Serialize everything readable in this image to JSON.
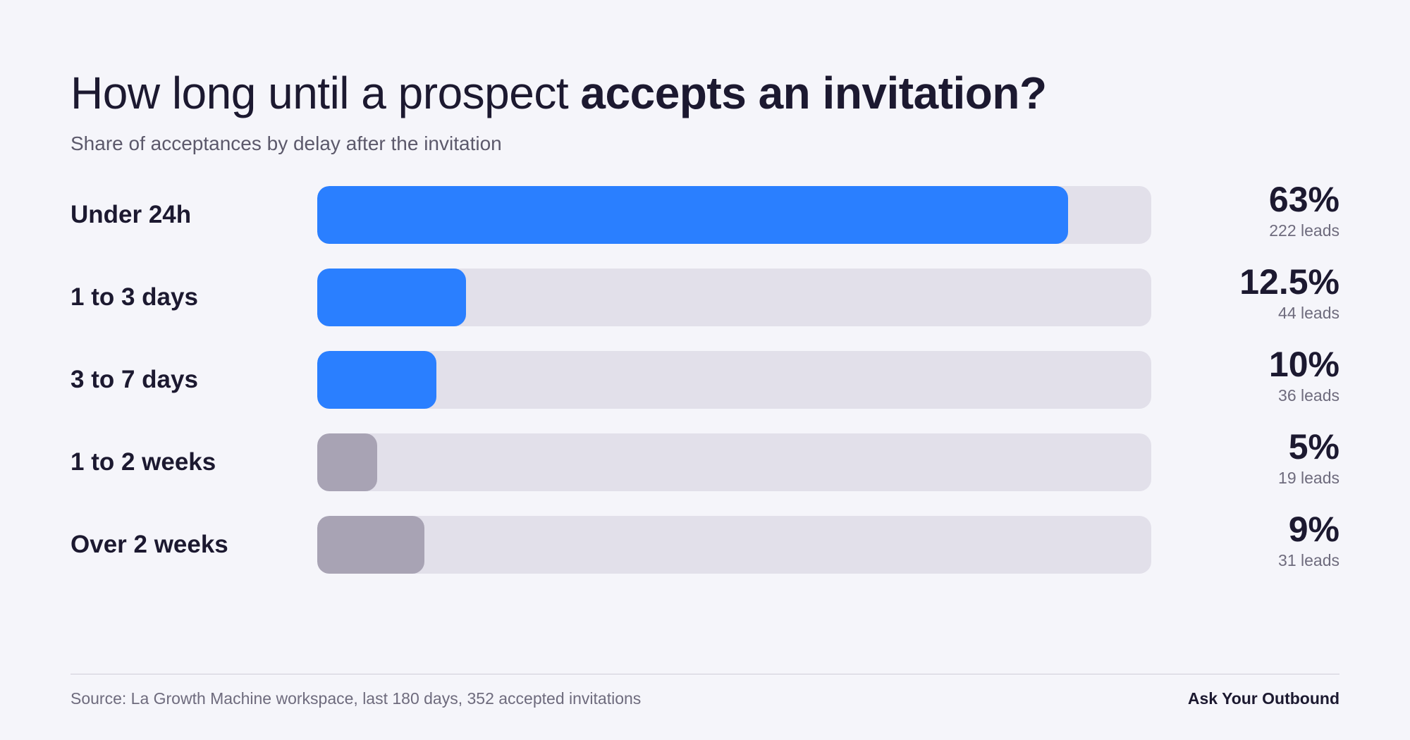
{
  "header": {
    "title_regular": "How long until a prospect",
    "title_bold": "accepts an invitation?",
    "subtitle": "Share of acceptances by delay after the invitation"
  },
  "chart_data": {
    "type": "bar",
    "orientation": "horizontal",
    "title": "How long until a prospect accepts an invitation?",
    "subtitle": "Share of acceptances by delay after the invitation",
    "categories": [
      "Under 24h",
      "1 to 3 days",
      "3 to 7 days",
      "1 to 2 weeks",
      "Over 2 weeks"
    ],
    "values": [
      63,
      12.5,
      10,
      5,
      9
    ],
    "value_labels": [
      "63%",
      "12.5%",
      "10%",
      "5%",
      "9%"
    ],
    "leads": [
      "222 leads",
      "44 leads",
      "36 leads",
      "19 leads",
      "31 leads"
    ],
    "xlim": [
      0,
      70
    ],
    "colors": [
      "#2a7fff",
      "#2a7fff",
      "#2a7fff",
      "#a8a3b4",
      "#a8a3b4"
    ],
    "track_color": "#e2e0ea",
    "grid": false,
    "legend": "none"
  },
  "footer": {
    "source": "Source: La Growth Machine workspace, last 180 days, 352 accepted invitations",
    "brand": "Ask Your Outbound"
  }
}
